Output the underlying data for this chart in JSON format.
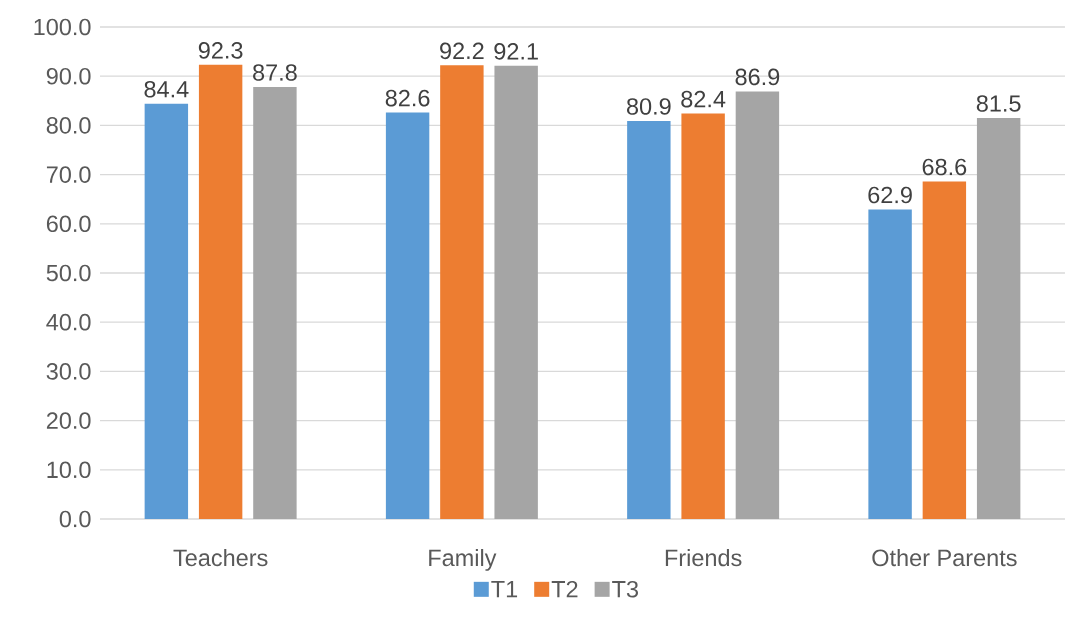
{
  "chart_data": {
    "type": "bar",
    "categories": [
      "Teachers",
      "Family",
      "Friends",
      "Other Parents"
    ],
    "series": [
      {
        "name": "T1",
        "color": "#5b9bd5",
        "values": [
          84.4,
          82.6,
          80.9,
          62.9
        ]
      },
      {
        "name": "T2",
        "color": "#ed7d31",
        "values": [
          92.3,
          92.2,
          82.4,
          68.6
        ]
      },
      {
        "name": "T3",
        "color": "#a5a5a5",
        "values": [
          87.8,
          92.1,
          86.9,
          81.5
        ]
      }
    ],
    "ylim": [
      0,
      100
    ],
    "yticks": [
      {
        "value": 0,
        "label": "0.0"
      },
      {
        "value": 10,
        "label": "10.0"
      },
      {
        "value": 20,
        "label": "20.0"
      },
      {
        "value": 30,
        "label": "30.0"
      },
      {
        "value": 40,
        "label": "40.0"
      },
      {
        "value": 50,
        "label": "50.0"
      },
      {
        "value": 60,
        "label": "60.0"
      },
      {
        "value": 70,
        "label": "70.0"
      },
      {
        "value": 80,
        "label": "80.0"
      },
      {
        "value": 90,
        "label": "90.0"
      },
      {
        "value": 100,
        "label": "100.0"
      }
    ],
    "grid": "y",
    "legend": "bottom",
    "data_labels": true
  }
}
